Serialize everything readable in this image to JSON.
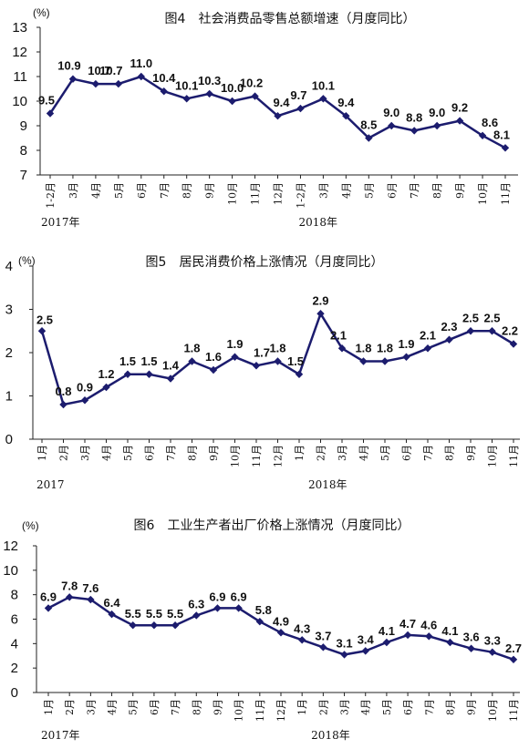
{
  "chart_data": [
    {
      "type": "line",
      "title": "图4　社会消费品零售总额增速（月度同比）",
      "unit": "(%)",
      "ylim": [
        7,
        13
      ],
      "yticks": [
        7,
        8,
        9,
        10,
        11,
        12,
        13
      ],
      "grid": false,
      "categories": [
        "1-2月",
        "3月",
        "4月",
        "5月",
        "6月",
        "7月",
        "8月",
        "9月",
        "10月",
        "11月",
        "12月",
        "1-2月",
        "3月",
        "4月",
        "5月",
        "6月",
        "7月",
        "8月",
        "9月",
        "10月",
        "11月"
      ],
      "years": [
        "2017年",
        "2018年"
      ],
      "series": [
        {
          "values": [
            9.5,
            10.9,
            10.7,
            10.7,
            11.0,
            10.4,
            10.1,
            10.3,
            10.0,
            10.2,
            9.4,
            9.7,
            10.1,
            9.4,
            8.5,
            9.0,
            8.8,
            9.0,
            9.2,
            8.6,
            8.1
          ]
        }
      ],
      "labels": [
        "9.5",
        "10.9",
        "10.7",
        "10.7",
        "11.0",
        "10.4",
        "10.1",
        "10.3",
        "10.0",
        "10.2",
        "9.4",
        "9.7",
        "10.1",
        "9.4",
        "8.5",
        "9.0",
        "8.8",
        "9.0",
        "9.2",
        "8.6",
        "8.1"
      ]
    },
    {
      "type": "line",
      "title": "图5　居民消费价格上涨情况（月度同比）",
      "unit": "(%)",
      "ylim": [
        0,
        4
      ],
      "yticks": [
        0,
        1,
        2,
        3,
        4
      ],
      "grid": false,
      "categories": [
        "1月",
        "2月",
        "3月",
        "4月",
        "5月",
        "6月",
        "7月",
        "8月",
        "9月",
        "10月",
        "11月",
        "12月",
        "1月",
        "2月",
        "3月",
        "4月",
        "5月",
        "6月",
        "7月",
        "8月",
        "9月",
        "10月",
        "11月"
      ],
      "years": [
        "2017",
        "2018年"
      ],
      "series": [
        {
          "values": [
            2.5,
            0.8,
            0.9,
            1.2,
            1.5,
            1.5,
            1.4,
            1.8,
            1.6,
            1.9,
            1.7,
            1.8,
            1.5,
            2.9,
            2.1,
            1.8,
            1.8,
            1.9,
            2.1,
            2.3,
            2.5,
            2.5,
            2.2
          ]
        }
      ],
      "labels": [
        "2.5",
        "0.8",
        "0.9",
        "1.2",
        "1.5",
        "1.5",
        "1.4",
        "1.8",
        "1.6",
        "1.9",
        "1.7",
        "1.8",
        "1.5",
        "2.9",
        "2.1",
        "1.8",
        "1.8",
        "1.9",
        "2.1",
        "2.3",
        "2.5",
        "2.5",
        "2.2"
      ]
    },
    {
      "type": "line",
      "title": "图6　工业生产者出厂价格上涨情况（月度同比）",
      "unit": "(%)",
      "ylim": [
        0,
        12
      ],
      "yticks": [
        0,
        2,
        4,
        6,
        8,
        10,
        12
      ],
      "grid": false,
      "categories": [
        "1月",
        "2月",
        "3月",
        "4月",
        "5月",
        "6月",
        "7月",
        "8月",
        "9月",
        "10月",
        "11月",
        "12月",
        "1月",
        "2月",
        "3月",
        "4月",
        "5月",
        "6月",
        "7月",
        "8月",
        "9月",
        "10月",
        "11月"
      ],
      "years": [
        "2017年",
        "2018年"
      ],
      "series": [
        {
          "values": [
            6.9,
            7.8,
            7.6,
            6.4,
            5.5,
            5.5,
            5.5,
            6.3,
            6.9,
            6.9,
            5.8,
            4.9,
            4.3,
            3.7,
            3.1,
            3.4,
            4.1,
            4.7,
            4.6,
            4.1,
            3.6,
            3.3,
            2.7
          ]
        }
      ],
      "labels": [
        "6.9",
        "7.8",
        "7.6",
        "6.4",
        "5.5",
        "5.5",
        "5.5",
        "6.3",
        "6.9",
        "6.9",
        "5.8",
        "4.9",
        "4.3",
        "3.7",
        "3.1",
        "3.4",
        "4.1",
        "4.7",
        "4.6",
        "4.1",
        "3.6",
        "3.3",
        "2.7"
      ]
    }
  ]
}
